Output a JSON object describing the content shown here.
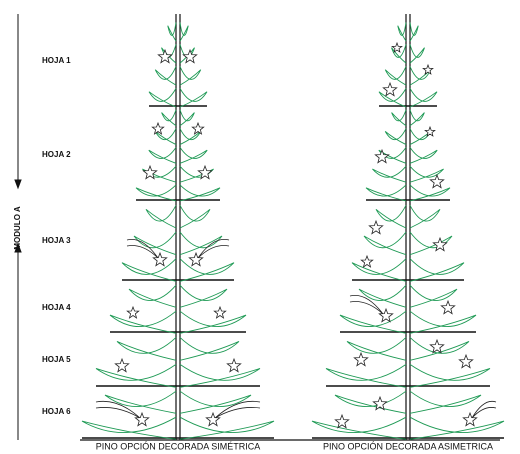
{
  "sheets": [
    "HOJA 1",
    "HOJA 2",
    "HOJA 3",
    "HOJA 4",
    "HOJA 5",
    "HOJA 6"
  ],
  "module": "MODULO A",
  "captions": {
    "symmetric": "PINO OPCIÓN DECORADA SIMÉTRICA",
    "asymmetric": "PINO OPCIÓN DECORADA ASIMETRICA"
  }
}
